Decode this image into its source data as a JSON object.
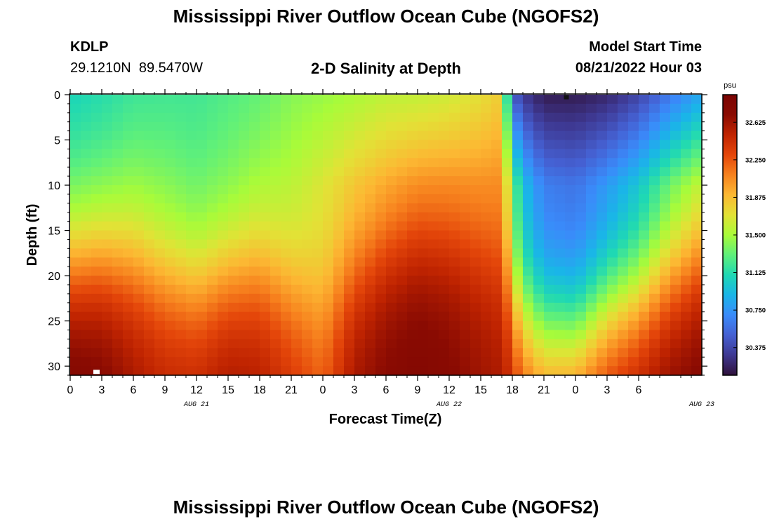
{
  "header": {
    "title": "Mississippi River Outflow Ocean Cube (NGOFS2)",
    "station_id": "KDLP",
    "station_coords": "29.1210N  89.5470W",
    "subtitle": "2-D Salinity at Depth",
    "model_start_label": "Model Start Time",
    "model_start_value": "08/21/2022 Hour 03"
  },
  "footer": {
    "repeated_title": "Mississippi River Outflow Ocean Cube (NGOFS2)"
  },
  "colors": {
    "colormap": [
      "#30123b",
      "#3e3891",
      "#4560d2",
      "#3a8bfa",
      "#1ab5e8",
      "#1fd8b4",
      "#5ff07a",
      "#a9fb39",
      "#e2e236",
      "#fcb833",
      "#f7821e",
      "#e4460a",
      "#c02401",
      "#8a0b02",
      "#7a0403"
    ],
    "marker_dark": "#111111",
    "marker_light": "#ffffff"
  },
  "chart_data": {
    "type": "heatmap",
    "title": "2-D Salinity at Depth",
    "xlabel": "Forecast Time(Z)",
    "ylabel": "Depth (ft)",
    "x_hours_since_start": [
      0,
      51
    ],
    "x_tick_labels": [
      "0",
      "3",
      "6",
      "9",
      "12",
      "15",
      "18",
      "21",
      "0",
      "3",
      "6",
      "9",
      "12",
      "15",
      "18",
      "21",
      "0",
      "3",
      "6"
    ],
    "date_labels": [
      {
        "label": "AUG 21",
        "hour": 12
      },
      {
        "label": "AUG 22",
        "hour": 36
      },
      {
        "label": "AUG 23",
        "hour": 60
      }
    ],
    "y_ticks": [
      0,
      5,
      10,
      15,
      20,
      25,
      30
    ],
    "ylim": [
      0,
      31
    ],
    "y_inverted": true,
    "colorbar": {
      "unit": "psu",
      "ticks": [
        "32.625",
        "32.250",
        "31.875",
        "31.500",
        "31.125",
        "30.750",
        "30.375"
      ],
      "range": [
        30.1,
        32.9
      ]
    },
    "columns": [
      {
        "hour": 0,
        "surface": 31.05,
        "mid": 31.15,
        "thermo_depth": 18.5,
        "bottom": 32.85
      },
      {
        "hour": 3,
        "surface": 31.1,
        "mid": 31.2,
        "thermo_depth": 18.0,
        "bottom": 32.8
      },
      {
        "hour": 6,
        "surface": 31.18,
        "mid": 31.3,
        "thermo_depth": 18.5,
        "bottom": 32.65
      },
      {
        "hour": 9,
        "surface": 31.2,
        "mid": 31.3,
        "thermo_depth": 20.0,
        "bottom": 32.55
      },
      {
        "hour": 12,
        "surface": 31.2,
        "mid": 31.25,
        "thermo_depth": 21.0,
        "bottom": 32.55
      },
      {
        "hour": 15,
        "surface": 31.25,
        "mid": 31.3,
        "thermo_depth": 20.0,
        "bottom": 32.65
      },
      {
        "hour": 18,
        "surface": 31.3,
        "mid": 31.4,
        "thermo_depth": 19.5,
        "bottom": 32.6
      },
      {
        "hour": 21,
        "surface": 31.4,
        "mid": 31.5,
        "thermo_depth": 21.5,
        "bottom": 32.45
      },
      {
        "hour": 24,
        "surface": 31.45,
        "mid": 31.65,
        "thermo_depth": 23.5,
        "bottom": 32.3
      },
      {
        "hour": 27,
        "surface": 31.5,
        "mid": 31.75,
        "thermo_depth": 20.0,
        "bottom": 32.65
      },
      {
        "hour": 30,
        "surface": 31.55,
        "mid": 31.8,
        "thermo_depth": 17.0,
        "bottom": 32.75
      },
      {
        "hour": 33,
        "surface": 31.55,
        "mid": 31.85,
        "thermo_depth": 15.5,
        "bottom": 32.8
      },
      {
        "hour": 36,
        "surface": 31.6,
        "mid": 31.9,
        "thermo_depth": 16.0,
        "bottom": 32.75
      },
      {
        "hour": 39,
        "surface": 31.7,
        "mid": 31.95,
        "thermo_depth": 17.5,
        "bottom": 32.65
      },
      {
        "hour": 41,
        "surface": 31.8,
        "mid": 32.0,
        "thermo_depth": 19.0,
        "bottom": 32.6
      },
      {
        "hour": 42,
        "surface": 30.5,
        "mid": 31.3,
        "thermo_depth": 22.5,
        "bottom": 32.5
      },
      {
        "hour": 43,
        "surface": 30.3,
        "mid": 30.9,
        "thermo_depth": 24.5,
        "bottom": 32.4
      },
      {
        "hour": 45,
        "surface": 30.15,
        "mid": 30.6,
        "thermo_depth": 26.0,
        "bottom": 32.3
      },
      {
        "hour": 48,
        "surface": 30.15,
        "mid": 30.55,
        "thermo_depth": 26.5,
        "bottom": 32.4
      },
      {
        "hour": 51,
        "surface": 30.2,
        "mid": 30.7,
        "thermo_depth": 24.0,
        "bottom": 32.55
      },
      {
        "hour": 54,
        "surface": 30.35,
        "mid": 30.9,
        "thermo_depth": 22.5,
        "bottom": 32.65
      },
      {
        "hour": 57,
        "surface": 30.6,
        "mid": 31.2,
        "thermo_depth": 20.0,
        "bottom": 32.75
      },
      {
        "hour": 60,
        "surface": 30.8,
        "mid": 31.4,
        "thermo_depth": 18.0,
        "bottom": 32.8
      }
    ]
  }
}
